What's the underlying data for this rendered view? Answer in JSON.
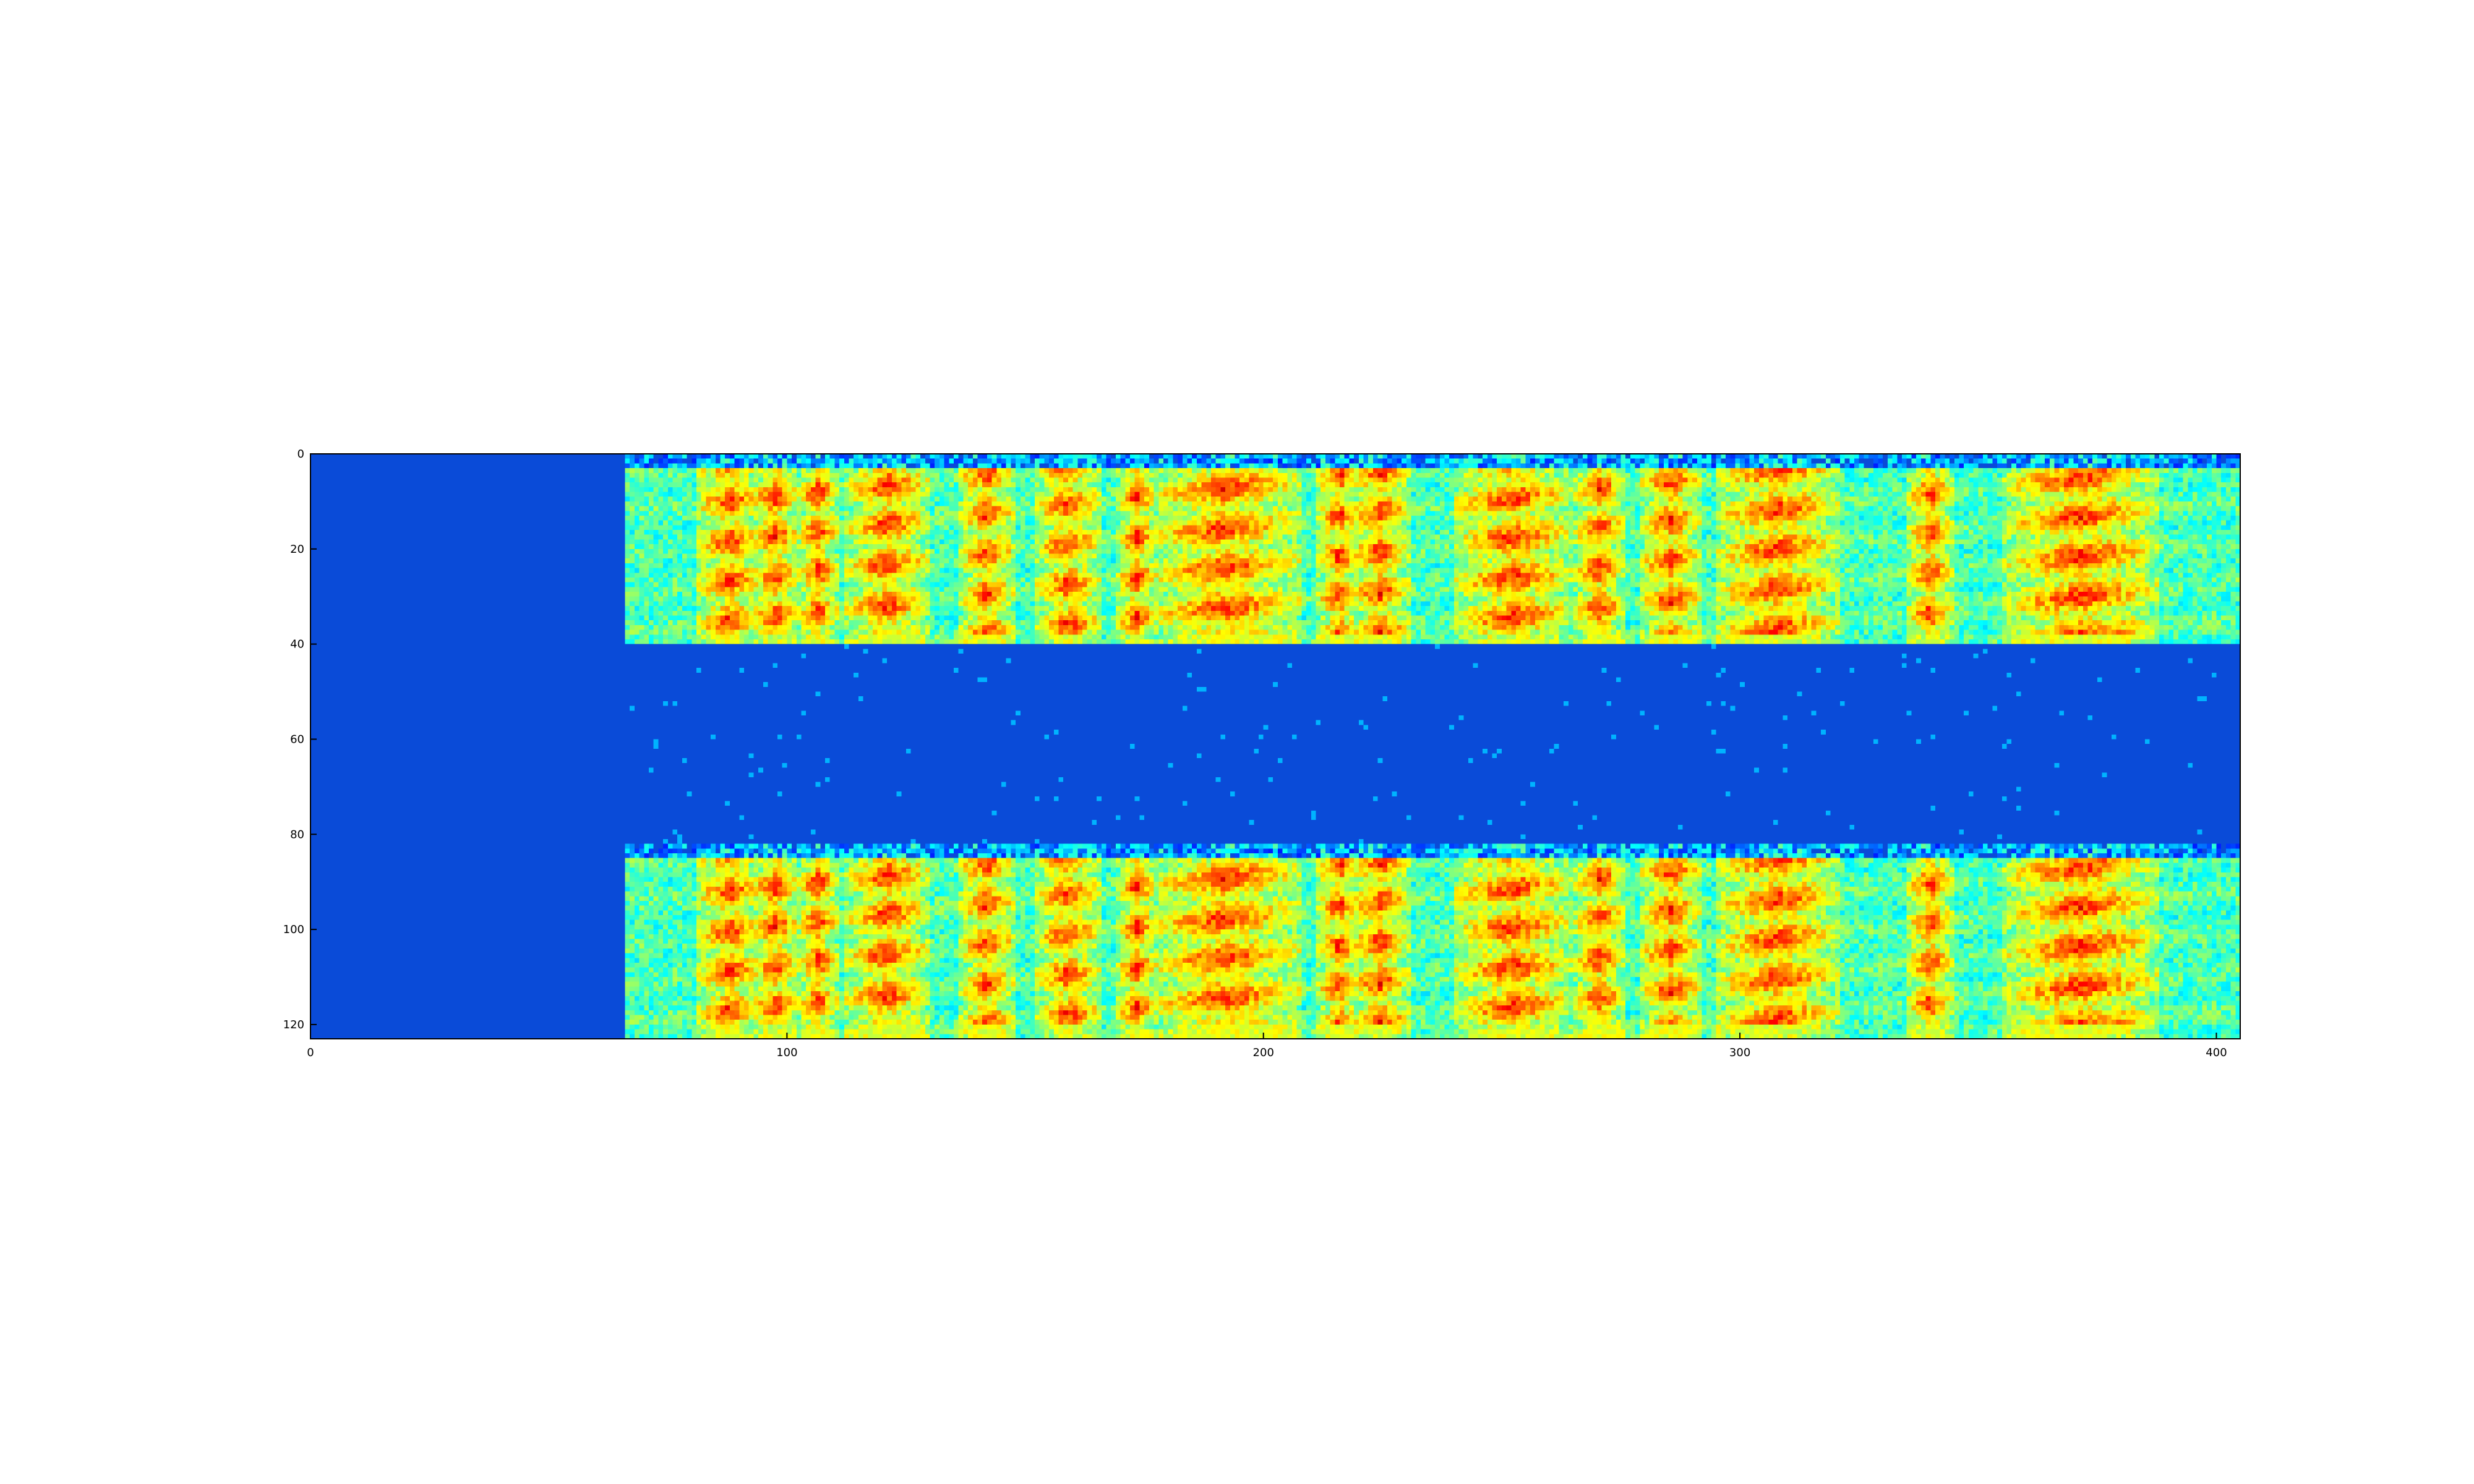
{
  "chart_data": {
    "type": "heatmap",
    "title": "",
    "xlabel": "",
    "ylabel": "",
    "colormap": "jet",
    "xlim": [
      0,
      405
    ],
    "ylim": [
      123,
      0
    ],
    "x_ticks": [
      0,
      100,
      200,
      300,
      400
    ],
    "y_ticks": [
      0,
      20,
      40,
      60,
      80,
      100,
      120
    ],
    "grid": false,
    "frame_count": 405,
    "bin_count": 123,
    "empty_region_end_frame": 66,
    "bands": [
      {
        "name": "upper spectrogram",
        "rows": [
          0,
          40
        ]
      },
      {
        "name": "middle uniform band",
        "rows": [
          40,
          82
        ]
      },
      {
        "name": "lower spectrogram",
        "rows": [
          82,
          123
        ]
      }
    ],
    "background_level": 0.15,
    "high_energy_frames": [
      {
        "start": 83,
        "end": 92
      },
      {
        "start": 94,
        "end": 100
      },
      {
        "start": 104,
        "end": 108
      },
      {
        "start": 114,
        "end": 127
      },
      {
        "start": 138,
        "end": 145
      },
      {
        "start": 154,
        "end": 163
      },
      {
        "start": 171,
        "end": 175
      },
      {
        "start": 178,
        "end": 205
      },
      {
        "start": 213,
        "end": 218
      },
      {
        "start": 220,
        "end": 228
      },
      {
        "start": 242,
        "end": 262
      },
      {
        "start": 267,
        "end": 273
      },
      {
        "start": 281,
        "end": 289
      },
      {
        "start": 297,
        "end": 318
      },
      {
        "start": 337,
        "end": 342
      },
      {
        "start": 357,
        "end": 385
      }
    ],
    "colors": {
      "background": "#ffffff",
      "axis": "#000000",
      "low": "#0a4bd8"
    }
  }
}
